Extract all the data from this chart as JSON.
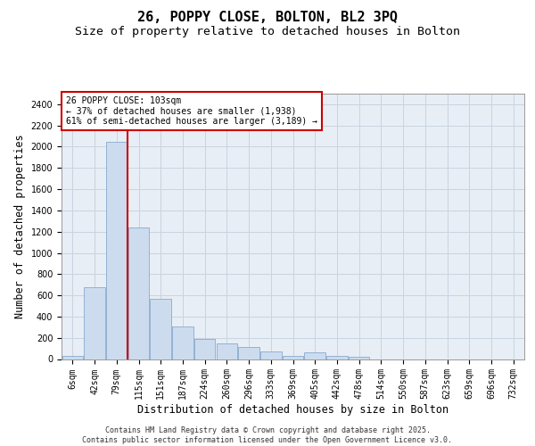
{
  "title1": "26, POPPY CLOSE, BOLTON, BL2 3PQ",
  "title2": "Size of property relative to detached houses in Bolton",
  "xlabel": "Distribution of detached houses by size in Bolton",
  "ylabel": "Number of detached properties",
  "bar_color": "#ccdcee",
  "bar_edge_color": "#88aad0",
  "grid_color": "#c8d4e0",
  "bg_color": "#e8eef5",
  "vline_color": "#cc0000",
  "annotation_text": "26 POPPY CLOSE: 103sqm\n← 37% of detached houses are smaller (1,938)\n61% of semi-detached houses are larger (3,189) →",
  "annotation_box_color": "#cc0000",
  "categories": [
    "6sqm",
    "42sqm",
    "79sqm",
    "115sqm",
    "151sqm",
    "187sqm",
    "224sqm",
    "260sqm",
    "296sqm",
    "333sqm",
    "369sqm",
    "405sqm",
    "442sqm",
    "478sqm",
    "514sqm",
    "550sqm",
    "587sqm",
    "623sqm",
    "659sqm",
    "696sqm",
    "732sqm"
  ],
  "values": [
    30,
    680,
    2050,
    1240,
    570,
    310,
    185,
    145,
    115,
    75,
    30,
    65,
    30,
    20,
    0,
    0,
    0,
    0,
    0,
    0,
    0
  ],
  "vline_bin": 3,
  "ylim": [
    0,
    2500
  ],
  "yticks": [
    0,
    200,
    400,
    600,
    800,
    1000,
    1200,
    1400,
    1600,
    1800,
    2000,
    2200,
    2400
  ],
  "footer": "Contains HM Land Registry data © Crown copyright and database right 2025.\nContains public sector information licensed under the Open Government Licence v3.0.",
  "title_fontsize": 11,
  "subtitle_fontsize": 9.5,
  "tick_fontsize": 7,
  "label_fontsize": 8.5
}
